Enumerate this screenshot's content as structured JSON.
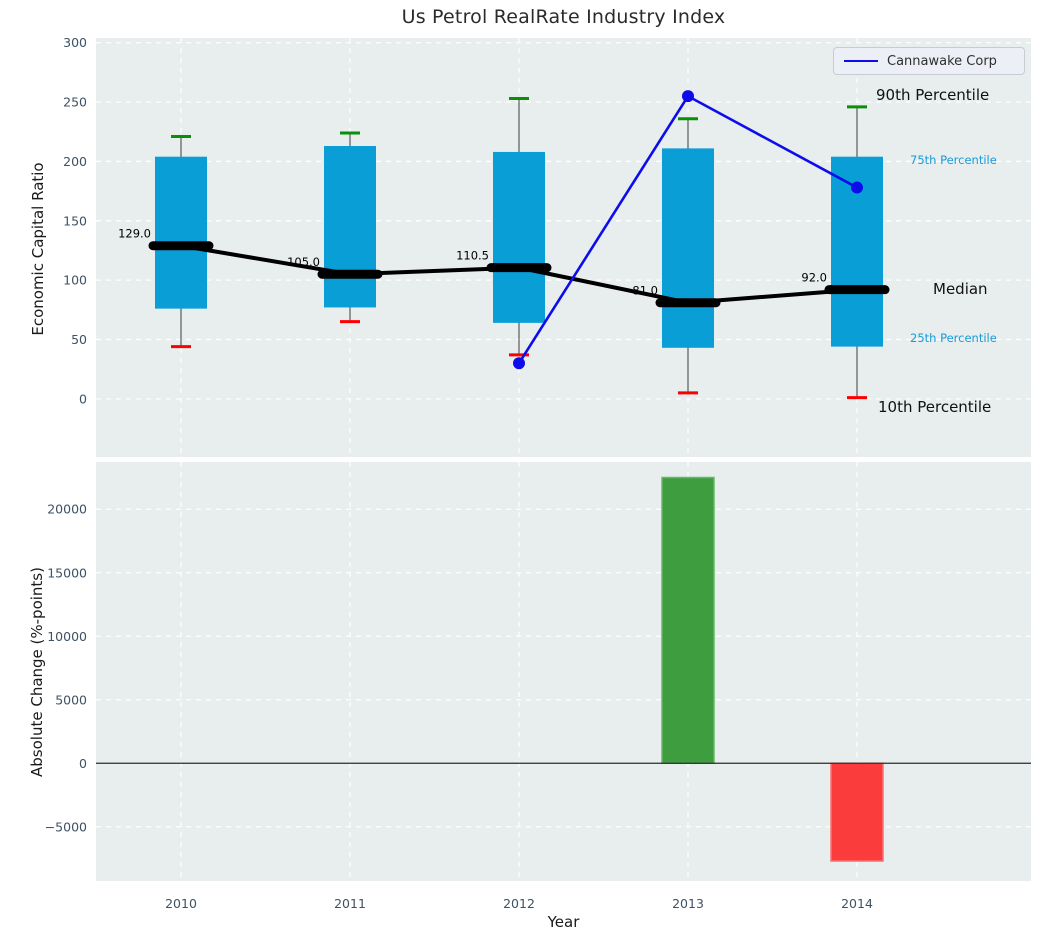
{
  "title": "Us Petrol RealRate Industry Index",
  "legend": {
    "label": "Cannawake Corp"
  },
  "annotations": {
    "p90": "90th Percentile",
    "p75": "75th Percentile",
    "median": "Median",
    "p25": "25th Percentile",
    "p10": "10th Percentile"
  },
  "colors": {
    "axes_bg": "#e8edee",
    "grid": "#ffffff",
    "tick": "#3e5264",
    "box_fill": "#0a9ed7",
    "whisker": "#5a5a5a",
    "cap_high": "#089008",
    "cap_low": "#ff0000",
    "median_line": "#000000",
    "company_line": "#0d0deb",
    "bar_positive": "#3e9d3e",
    "bar_positive_edge": "#67b967",
    "bar_negative": "#fa3c3c",
    "bar_negative_edge": "#fb7373",
    "zero_line": "#2a2a2a"
  },
  "chart_data": [
    {
      "type": "box",
      "title": "Us Petrol RealRate Industry Index",
      "ylabel": "Economic Capital Ratio",
      "ylim": [
        -49,
        304
      ],
      "yticks": [
        0,
        50,
        100,
        150,
        200,
        250,
        300
      ],
      "grid": true,
      "legend_position": "upper right",
      "categories": [
        "2010",
        "2011",
        "2012",
        "2013",
        "2014"
      ],
      "boxes": [
        {
          "year": "2010",
          "p10": 44,
          "p25": 76,
          "median": 129.0,
          "p75": 204,
          "p90": 221,
          "median_label": "129.0"
        },
        {
          "year": "2011",
          "p10": 65,
          "p25": 77,
          "median": 105.0,
          "p75": 213,
          "p90": 224,
          "median_label": "105.0"
        },
        {
          "year": "2012",
          "p10": 37,
          "p25": 64,
          "median": 110.5,
          "p75": 208,
          "p90": 253,
          "median_label": "110.5"
        },
        {
          "year": "2013",
          "p10": 5,
          "p25": 43,
          "median": 81.0,
          "p75": 211,
          "p90": 236,
          "median_label": "81.0"
        },
        {
          "year": "2014",
          "p10": 1,
          "p25": 44,
          "median": 92.0,
          "p75": 204,
          "p90": 246,
          "median_label": "92.0"
        }
      ],
      "series": [
        {
          "name": "Cannawake Corp",
          "x": [
            "2012",
            "2013",
            "2014"
          ],
          "y": [
            30,
            255,
            178
          ]
        }
      ]
    },
    {
      "type": "bar",
      "ylabel": "Absolute Change (%-points)",
      "xlabel": "Year",
      "ylim": [
        -9270,
        23720
      ],
      "yticks": [
        -5000,
        0,
        5000,
        10000,
        15000,
        20000
      ],
      "grid": true,
      "categories": [
        "2010",
        "2011",
        "2012",
        "2013",
        "2014"
      ],
      "values": [
        null,
        null,
        null,
        22500,
        -7700
      ]
    }
  ]
}
